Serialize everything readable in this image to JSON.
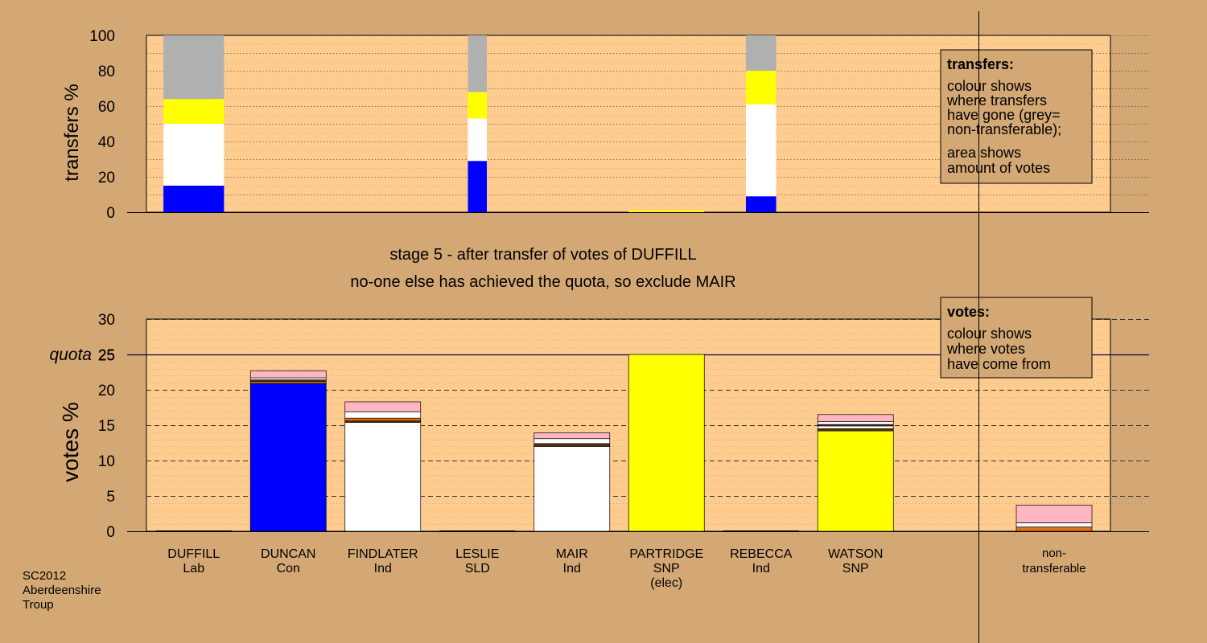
{
  "colors": {
    "page_bg": "#d4a874",
    "plot_bg": "#ffcc8f",
    "nt_bg": "#e0b482",
    "con": "#0000ff",
    "ind": "#ffffff",
    "snp": "#ffff00",
    "nontransferable": "#b0b0b0",
    "pink": "#ffb6c1",
    "orange": "#e07010",
    "brown": "#603010"
  },
  "header": {
    "stage_text": "stage 5 - after transfer of votes of DUFFILL",
    "status_text": "no-one else has achieved the quota, so exclude MAIR"
  },
  "footer": {
    "line1": "SC2012",
    "line2": "Aberdeenshire",
    "line3": "Troup"
  },
  "chart_data": [
    {
      "type": "bar",
      "id": "transfers",
      "ylabel": "transfers %",
      "ylim": [
        0,
        100
      ],
      "yticks": [
        0,
        20,
        40,
        60,
        80,
        100
      ],
      "grid": true,
      "legend_box": {
        "title": "transfers:",
        "lines": [
          "colour shows",
          "where transfers",
          "have gone (grey=",
          "non-transferable);"
        ],
        "lines2": [
          "area shows",
          "amount of votes"
        ]
      },
      "categories": [
        "DUFFILL",
        "DUNCAN",
        "FINDLATER",
        "LESLIE",
        "MAIR",
        "PARTRIDGE",
        "REBECCA",
        "WATSON"
      ],
      "bars": [
        {
          "category": "DUFFILL",
          "width_share": 0.8,
          "segments": [
            {
              "to": "DUNCAN",
              "color": "con",
              "value": 15
            },
            {
              "to": "FINDLATER/MAIR",
              "color": "ind",
              "value": 35
            },
            {
              "to": "PARTRIDGE/WATSON",
              "color": "snp",
              "value": 14
            },
            {
              "to": "non-transferable",
              "color": "nontransferable",
              "value": 36
            }
          ]
        },
        {
          "category": "LESLIE",
          "width_share": 0.25,
          "segments": [
            {
              "to": "DUNCAN",
              "color": "con",
              "value": 29
            },
            {
              "to": "FINDLATER/MAIR",
              "color": "ind",
              "value": 24
            },
            {
              "to": "PARTRIDGE/WATSON",
              "color": "snp",
              "value": 15
            },
            {
              "to": "non-transferable",
              "color": "nontransferable",
              "value": 32
            }
          ]
        },
        {
          "category": "PARTRIDGE",
          "width_share": 1.0,
          "segments": [
            {
              "to": "WATSON",
              "color": "snp",
              "value": 1
            }
          ]
        },
        {
          "category": "REBECCA",
          "width_share": 0.4,
          "segments": [
            {
              "to": "DUNCAN",
              "color": "con",
              "value": 9
            },
            {
              "to": "FINDLATER/MAIR",
              "color": "ind",
              "value": 52
            },
            {
              "to": "PARTRIDGE/WATSON",
              "color": "snp",
              "value": 19
            },
            {
              "to": "non-transferable",
              "color": "nontransferable",
              "value": 20
            }
          ]
        }
      ]
    },
    {
      "type": "bar",
      "id": "votes",
      "ylabel": "votes %",
      "ylim": [
        0,
        30
      ],
      "yticks": [
        0,
        5,
        10,
        15,
        20,
        25,
        30
      ],
      "quota": 25,
      "quota_label": "quota",
      "grid": true,
      "legend_box": {
        "title": "votes:",
        "lines": [
          "colour shows",
          "where votes",
          "have come from"
        ]
      },
      "categories": [
        {
          "name": "DUFFILL",
          "party": "Lab",
          "note": ""
        },
        {
          "name": "DUNCAN",
          "party": "Con",
          "note": ""
        },
        {
          "name": "FINDLATER",
          "party": "Ind",
          "note": ""
        },
        {
          "name": "LESLIE",
          "party": "SLD",
          "note": ""
        },
        {
          "name": "MAIR",
          "party": "Ind",
          "note": ""
        },
        {
          "name": "PARTRIDGE",
          "party": "SNP",
          "note": "(elec)"
        },
        {
          "name": "REBECCA",
          "party": "Ind",
          "note": ""
        },
        {
          "name": "WATSON",
          "party": "SNP",
          "note": ""
        }
      ],
      "nontransferable_label_1": "non-",
      "nontransferable_label_2": "transferable",
      "stacks": [
        {
          "category": "DUFFILL",
          "segments": []
        },
        {
          "category": "DUNCAN",
          "segments": [
            {
              "color": "con",
              "value": 20.9
            },
            {
              "color": "orange",
              "value": 0.3
            },
            {
              "color": "brown",
              "value": 0.2
            },
            {
              "color": "ind",
              "value": 0.3
            },
            {
              "color": "pink",
              "value": 1.0
            }
          ]
        },
        {
          "category": "FINDLATER",
          "segments": [
            {
              "color": "ind",
              "value": 15.4
            },
            {
              "color": "brown",
              "value": 0.2
            },
            {
              "color": "orange",
              "value": 0.4
            },
            {
              "color": "ind",
              "value": 0.9
            },
            {
              "color": "pink",
              "value": 1.4
            }
          ]
        },
        {
          "category": "LESLIE",
          "segments": []
        },
        {
          "category": "MAIR",
          "segments": [
            {
              "color": "ind",
              "value": 12.0
            },
            {
              "color": "brown",
              "value": 0.4
            },
            {
              "color": "ind",
              "value": 0.7
            },
            {
              "color": "pink",
              "value": 0.8
            }
          ]
        },
        {
          "category": "PARTRIDGE",
          "segments": [
            {
              "color": "snp",
              "value": 25.0
            }
          ]
        },
        {
          "category": "REBECCA",
          "segments": []
        },
        {
          "category": "WATSON",
          "segments": [
            {
              "color": "snp",
              "value": 14.2
            },
            {
              "color": "brown",
              "value": 0.3
            },
            {
              "color": "ind",
              "value": 0.4
            },
            {
              "color": "brown",
              "value": 0.2
            },
            {
              "color": "ind",
              "value": 0.4
            },
            {
              "color": "pink",
              "value": 1.0
            }
          ]
        },
        {
          "category": "non-transferable",
          "segments": [
            {
              "color": "orange",
              "value": 0.6
            },
            {
              "color": "ind",
              "value": 0.6
            },
            {
              "color": "pink",
              "value": 2.5
            }
          ]
        }
      ]
    }
  ]
}
